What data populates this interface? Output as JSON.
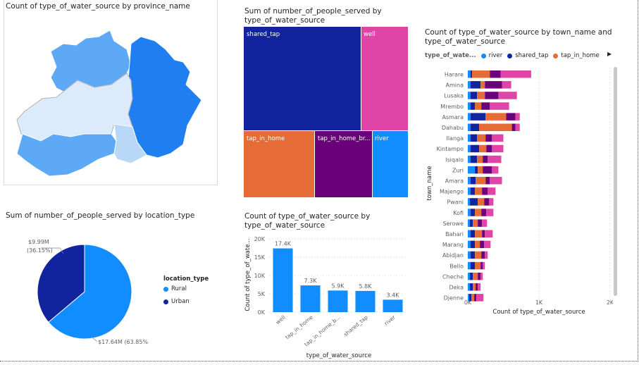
{
  "colors": {
    "river": "#118DFF",
    "shared_tap": "#12239E",
    "tap_in_home": "#E66C37",
    "tap_in_home_broken": "#6B007B",
    "well": "#E044A7",
    "map_dark": "#1f7ff0",
    "map_mid": "#5ea9f5",
    "map_light": "#dcebfb",
    "rural": "#118DFF",
    "urban": "#12239E"
  },
  "map_panel": {
    "title": "Count of type_of_water_source by province_name"
  },
  "treemap_panel": {
    "title_line1": "Sum of number_of_people_served by",
    "title_line2": "type_of_water_source",
    "labels": {
      "shared_tap": "shared_tap",
      "well": "well",
      "tap_in_home": "tap_in_home",
      "tap_in_home_broken": "tap_in_home_br...",
      "river": "river"
    }
  },
  "pie_panel": {
    "title": "Sum of number_of_people_served by location_type",
    "legend_title": "location_type",
    "urban_label_value": "$9.99M",
    "urban_label_pct": "(36.15%)",
    "rural_label": "$17.64M (63.85%)",
    "legend": [
      "Rural",
      "Urban"
    ]
  },
  "bar_panel": {
    "title_line1": "Count of type_of_water_source by",
    "title_line2": "type_of_water_source"
  },
  "town_panel": {
    "title_line1": "Count of type_of_water_source by town_name and",
    "title_line2": "type_of_water_source",
    "legend_title": "type_of_wate...",
    "legend": [
      "river",
      "shared_tap",
      "tap_in_home"
    ]
  },
  "chart_data": [
    {
      "type": "map",
      "title": "Count of type_of_water_source by province_name"
    },
    {
      "type": "treemap",
      "title": "Sum of number_of_people_served by type_of_water_source",
      "categories": [
        "shared_tap",
        "well",
        "tap_in_home",
        "tap_in_home_broken",
        "river"
      ],
      "values": [
        11.9,
        4.8,
        4.7,
        3.8,
        2.4
      ]
    },
    {
      "type": "pie",
      "title": "Sum of number_of_people_served by location_type",
      "categories": [
        "Rural",
        "Urban"
      ],
      "values": [
        17.64,
        9.99
      ],
      "data_labels": [
        "$17.64M (63.85%)",
        "$9.99M (36.15%)"
      ]
    },
    {
      "type": "bar",
      "title": "Count of type_of_water_source by type_of_water_source",
      "categories": [
        "well",
        "tap_in_home",
        "tap_in_home_b...",
        "shared_tap",
        "river"
      ],
      "values": [
        17.4,
        7.3,
        5.9,
        5.8,
        3.4
      ],
      "data_labels": [
        "17.4K",
        "7.3K",
        "5.9K",
        "5.8K",
        "3.4K"
      ],
      "xlabel": "type_of_water_source",
      "ylabel": "Count of type_of_wate...",
      "yticks": [
        "0K",
        "5K",
        "10K",
        "15K",
        "20K"
      ],
      "ylim": [
        0,
        20
      ]
    },
    {
      "type": "bar",
      "orientation": "horizontal",
      "stacked": true,
      "title": "Count of type_of_water_source by town_name and type_of_water_source",
      "categories": [
        "Harare",
        "Amina",
        "Lusaka",
        "Mrembo",
        "Asmara",
        "Dahabu",
        "Ilanga",
        "Kintampo",
        "Isiqalo",
        "Zuri",
        "Amara",
        "Majengo",
        "Pwani",
        "Kofi",
        "Serowe",
        "Bahari",
        "Marang",
        "Abidjan",
        "Bello",
        "Cheche",
        "Deka",
        "Djenne"
      ],
      "series": [
        {
          "name": "river",
          "values": [
            40,
            40,
            40,
            40,
            40,
            40,
            40,
            40,
            40,
            100,
            40,
            40,
            30,
            40,
            30,
            40,
            40,
            40,
            40,
            30,
            30,
            20
          ]
        },
        {
          "name": "shared_tap",
          "values": [
            20,
            140,
            90,
            60,
            210,
            120,
            90,
            120,
            90,
            40,
            70,
            60,
            110,
            60,
            40,
            60,
            60,
            60,
            60,
            40,
            40,
            30
          ]
        },
        {
          "name": "tap_in_home",
          "values": [
            250,
            60,
            110,
            90,
            290,
            460,
            120,
            100,
            80,
            70,
            140,
            100,
            90,
            90,
            70,
            100,
            70,
            90,
            80,
            70,
            40,
            40
          ]
        },
        {
          "name": "tap_in_home_broken",
          "values": [
            150,
            240,
            190,
            120,
            130,
            50,
            90,
            80,
            70,
            130,
            60,
            80,
            70,
            70,
            60,
            40,
            60,
            50,
            30,
            40,
            30,
            30
          ]
        },
        {
          "name": "well",
          "values": [
            430,
            130,
            260,
            270,
            60,
            60,
            160,
            160,
            190,
            90,
            170,
            110,
            60,
            100,
            70,
            110,
            90,
            40,
            30,
            30,
            40,
            100
          ]
        }
      ],
      "xlabel": "Count of type_of_water_source",
      "ylabel": "town_name",
      "xticks": [
        "0K",
        "1K",
        "2K"
      ],
      "xlim": [
        0,
        2000
      ]
    }
  ]
}
